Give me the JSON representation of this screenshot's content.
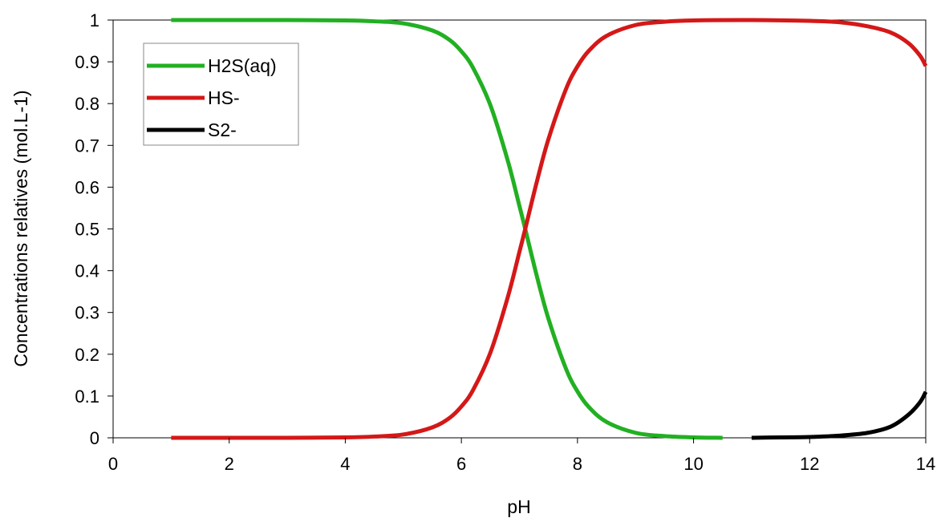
{
  "chart_data": {
    "type": "line",
    "title": "",
    "xlabel": "pH",
    "ylabel": "Concentrations relatives (mol.L-1)",
    "xlim": [
      0,
      14
    ],
    "ylim": [
      0,
      1
    ],
    "x_ticks": [
      "0",
      "2",
      "4",
      "6",
      "8",
      "10",
      "12",
      "14"
    ],
    "y_ticks": [
      "0",
      "0.1",
      "0.2",
      "0.3",
      "0.4",
      "0.5",
      "0.6",
      "0.7",
      "0.8",
      "0.9",
      "1"
    ],
    "grid": false,
    "legend_position": "top-left",
    "series": [
      {
        "name": "H2S(aq)",
        "color": "#22b022",
        "x": [
          1,
          2,
          3,
          4,
          4.5,
          5,
          5.5,
          5.8,
          6,
          6.2,
          6.5,
          6.8,
          7,
          7.1,
          7.3,
          7.5,
          7.8,
          8,
          8.2,
          8.5,
          9,
          9.5,
          10,
          10.5
        ],
        "y": [
          1,
          1,
          1,
          0.999,
          0.997,
          0.992,
          0.975,
          0.952,
          0.925,
          0.886,
          0.796,
          0.663,
          0.555,
          0.5,
          0.387,
          0.285,
          0.166,
          0.111,
          0.073,
          0.038,
          0.012,
          0.004,
          0.001,
          0
        ]
      },
      {
        "name": "HS-",
        "color": "#d41818",
        "x": [
          1,
          2,
          3,
          4,
          4.5,
          5,
          5.5,
          5.8,
          6,
          6.2,
          6.5,
          6.8,
          7,
          7.1,
          7.3,
          7.5,
          7.8,
          8,
          8.2,
          8.5,
          9,
          9.5,
          10,
          11,
          12,
          12.5,
          13,
          13.4,
          13.7,
          13.9,
          14
        ],
        "y": [
          0,
          0,
          0,
          0.001,
          0.003,
          0.008,
          0.025,
          0.048,
          0.075,
          0.114,
          0.204,
          0.337,
          0.445,
          0.5,
          0.613,
          0.715,
          0.834,
          0.889,
          0.927,
          0.962,
          0.988,
          0.996,
          0.999,
          1,
          0.998,
          0.995,
          0.985,
          0.97,
          0.945,
          0.915,
          0.89
        ]
      },
      {
        "name": "S2-",
        "color": "#000000",
        "x": [
          11,
          11.5,
          12,
          12.5,
          13,
          13.4,
          13.7,
          13.9,
          14
        ],
        "y": [
          0,
          0.001,
          0.002,
          0.005,
          0.012,
          0.027,
          0.055,
          0.085,
          0.11
        ]
      }
    ]
  }
}
